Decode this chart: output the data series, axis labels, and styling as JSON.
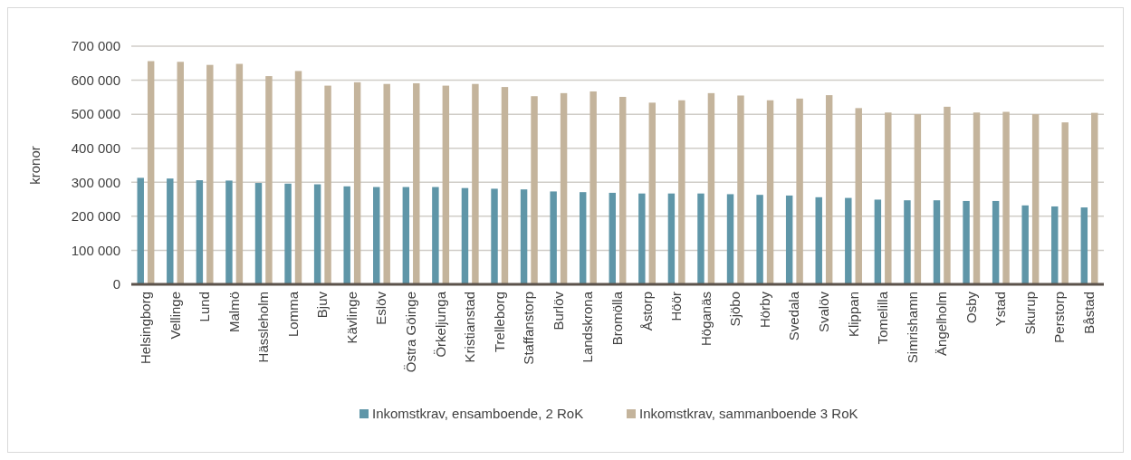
{
  "chart_data": {
    "type": "bar",
    "ylabel": "kronor",
    "categories": [
      "Helsingborg",
      "Vellinge",
      "Lund",
      "Malmö",
      "Hässleholm",
      "Lomma",
      "Bjuv",
      "Kävlinge",
      "Eslöv",
      "Östra Göinge",
      "Örkeljunga",
      "Kristianstad",
      "Trelleborg",
      "Staffanstorp",
      "Burlöv",
      "Landskrona",
      "Bromölla",
      "Åstorp",
      "Höör",
      "Höganäs",
      "Sjöbo",
      "Hörby",
      "Svedala",
      "Svalöv",
      "Klippan",
      "Tomelilla",
      "Simrishamn",
      "Ängelholm",
      "Osby",
      "Ystad",
      "Skurup",
      "Perstorp",
      "Båstad"
    ],
    "series": [
      {
        "name": "Inkomstkrav, ensamboende, 2 RoK",
        "color": "#5f96a8",
        "values": [
          313000,
          311000,
          306000,
          305000,
          298000,
          296000,
          294000,
          288000,
          286000,
          286000,
          286000,
          283000,
          281000,
          279000,
          273000,
          271000,
          269000,
          267000,
          267000,
          267000,
          265000,
          263000,
          261000,
          256000,
          254000,
          249000,
          247000,
          247000,
          245000,
          245000,
          232000,
          229000,
          226000
        ]
      },
      {
        "name": "Inkomstkrav, sammanboende 3 RoK",
        "color": "#c4b49c",
        "values": [
          656000,
          654000,
          645000,
          648000,
          612000,
          627000,
          584000,
          594000,
          589000,
          591000,
          584000,
          589000,
          580000,
          553000,
          562000,
          567000,
          551000,
          534000,
          541000,
          562000,
          555000,
          541000,
          546000,
          556000,
          518000,
          505000,
          500000,
          522000,
          505000,
          507000,
          500000,
          476000,
          504000
        ]
      }
    ],
    "ylim": [
      0,
      700000
    ],
    "yticks": [
      {
        "value": 0,
        "label": "0"
      },
      {
        "value": 100000,
        "label": "100 000"
      },
      {
        "value": 200000,
        "label": "200 000"
      },
      {
        "value": 300000,
        "label": "300 000"
      },
      {
        "value": 400000,
        "label": "400 000"
      },
      {
        "value": 500000,
        "label": "500 000"
      },
      {
        "value": 600000,
        "label": "600 000"
      },
      {
        "value": 700000,
        "label": "700 000"
      }
    ],
    "grid": "y",
    "legend": "bottom"
  }
}
